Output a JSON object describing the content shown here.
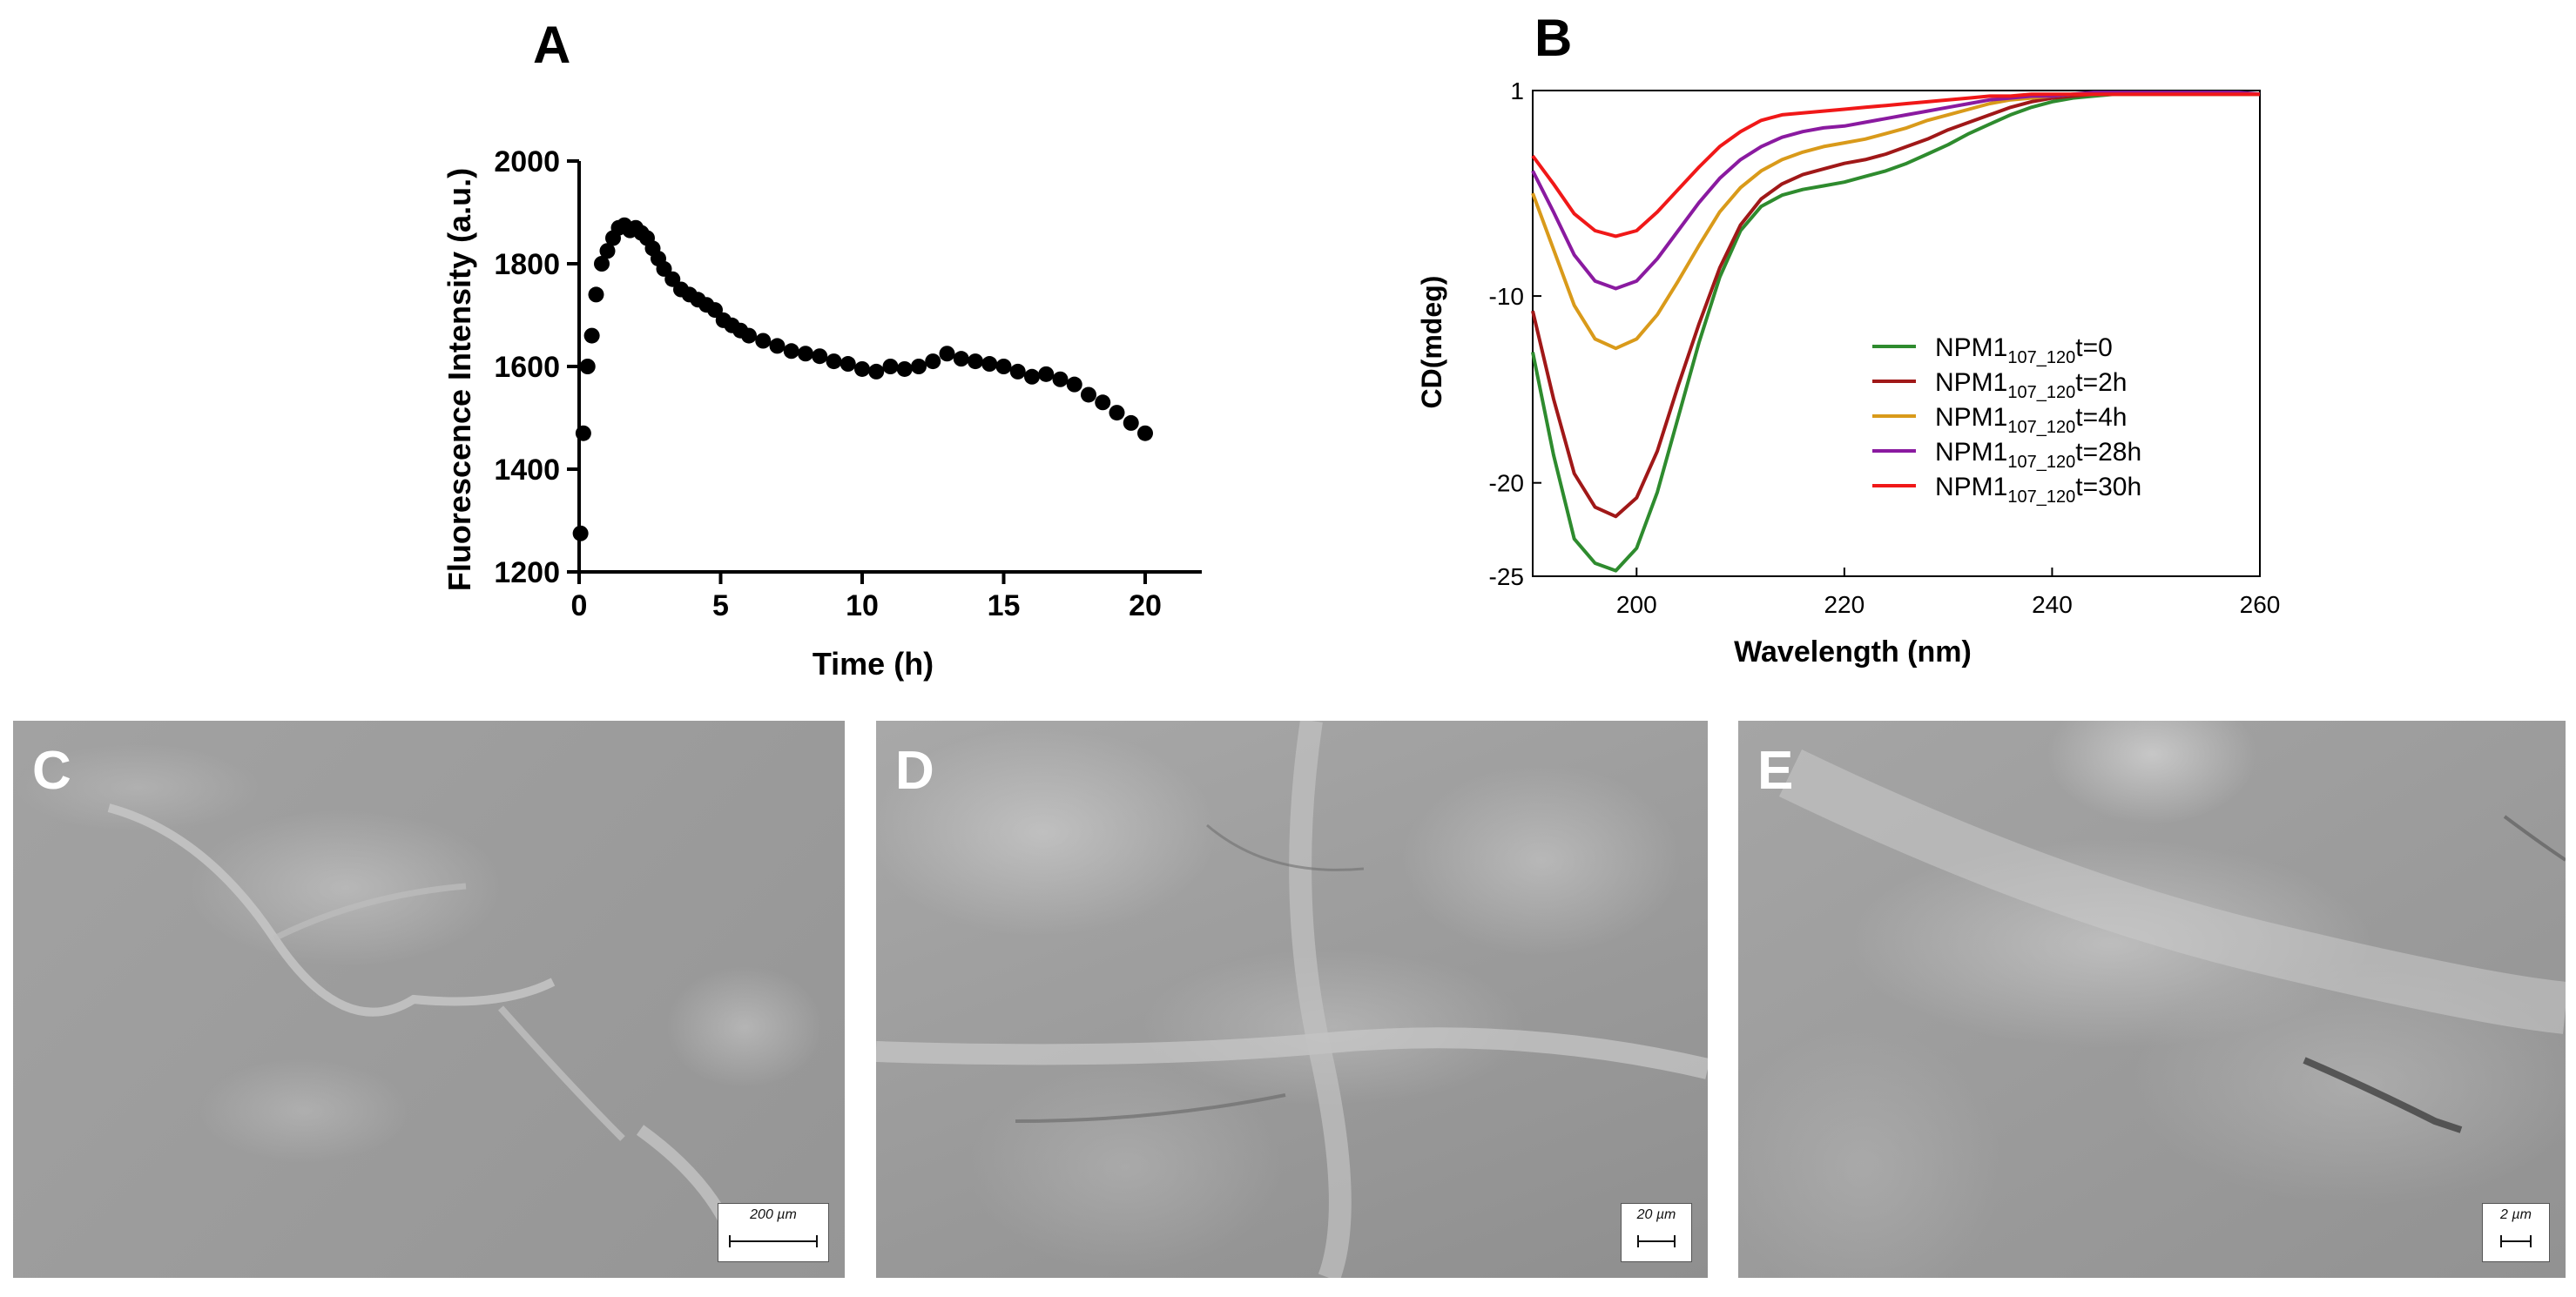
{
  "chart_data": [
    {
      "panel": "A",
      "type": "scatter",
      "title": "",
      "xlabel": "Time (h)",
      "ylabel": "Fluorescence Intensity (a.u.)",
      "xlim": [
        0,
        22
      ],
      "ylim": [
        1200,
        2000
      ],
      "xticks": [
        "0",
        "5",
        "10",
        "15",
        "20"
      ],
      "yticks": [
        "1200",
        "1400",
        "1600",
        "1800",
        "2000"
      ],
      "series": [
        {
          "name": "Fluorescence",
          "color": "#000000",
          "x": [
            0.05,
            0.15,
            0.3,
            0.45,
            0.6,
            0.8,
            1.0,
            1.2,
            1.4,
            1.6,
            1.8,
            2.0,
            2.2,
            2.4,
            2.6,
            2.8,
            3.0,
            3.3,
            3.6,
            3.9,
            4.2,
            4.5,
            4.8,
            5.1,
            5.4,
            5.7,
            6.0,
            6.5,
            7.0,
            7.5,
            8.0,
            8.5,
            9.0,
            9.5,
            10.0,
            10.5,
            11.0,
            11.5,
            12.0,
            12.5,
            13.0,
            13.5,
            14.0,
            14.5,
            15.0,
            15.5,
            16.0,
            16.5,
            17.0,
            17.5,
            18.0,
            18.5,
            19.0,
            19.5,
            20.0
          ],
          "y": [
            1275,
            1470,
            1600,
            1660,
            1740,
            1800,
            1825,
            1850,
            1870,
            1875,
            1865,
            1870,
            1860,
            1850,
            1830,
            1810,
            1790,
            1770,
            1750,
            1740,
            1730,
            1720,
            1710,
            1690,
            1680,
            1670,
            1660,
            1650,
            1640,
            1630,
            1625,
            1620,
            1610,
            1605,
            1595,
            1590,
            1600,
            1595,
            1600,
            1610,
            1625,
            1615,
            1610,
            1605,
            1600,
            1590,
            1580,
            1585,
            1575,
            1565,
            1545,
            1530,
            1510,
            1490,
            1470
          ]
        }
      ]
    },
    {
      "panel": "B",
      "type": "line",
      "title": "",
      "xlabel": "Wavelength (nm)",
      "ylabel": "CD(mdeg)",
      "xlim": [
        190,
        260
      ],
      "ylim": [
        -25,
        1
      ],
      "xticks": [
        "200",
        "220",
        "240",
        "260"
      ],
      "yticks": [
        "1",
        "-10",
        "-20",
        "-25"
      ],
      "legend_position": "center-right",
      "x": [
        190,
        192,
        194,
        196,
        198,
        200,
        202,
        204,
        206,
        208,
        210,
        212,
        214,
        216,
        218,
        220,
        222,
        224,
        226,
        228,
        230,
        232,
        234,
        236,
        238,
        240,
        242,
        244,
        246,
        248,
        250,
        252,
        254,
        256,
        258,
        260
      ],
      "series": [
        {
          "name": "NPM1",
          "sub": "107_120",
          "suffix": "t=0",
          "color": "#2e8b2e",
          "values": [
            -13,
            -18.5,
            -23,
            -24.3,
            -24.7,
            -23.5,
            -20.5,
            -16.5,
            -12.5,
            -9,
            -6.5,
            -5.2,
            -4.6,
            -4.3,
            -4.1,
            -3.9,
            -3.6,
            -3.3,
            -2.9,
            -2.4,
            -1.9,
            -1.3,
            -0.8,
            -0.3,
            0.1,
            0.4,
            0.6,
            0.7,
            0.8,
            0.8,
            0.8,
            0.8,
            0.8,
            0.8,
            0.8,
            0.8
          ]
        },
        {
          "name": "NPM1",
          "sub": "107_120",
          "suffix": "t=2h",
          "color": "#a01818",
          "values": [
            -10.8,
            -15.5,
            -19.5,
            -21.3,
            -21.8,
            -20.8,
            -18.3,
            -14.8,
            -11.5,
            -8.5,
            -6.2,
            -4.8,
            -4,
            -3.5,
            -3.2,
            -2.9,
            -2.7,
            -2.4,
            -2,
            -1.6,
            -1.1,
            -0.7,
            -0.3,
            0.1,
            0.4,
            0.6,
            0.7,
            0.8,
            0.8,
            0.8,
            0.8,
            0.8,
            0.8,
            0.8,
            0.8,
            0.8
          ]
        },
        {
          "name": "NPM1",
          "sub": "107_120",
          "suffix": "t=4h",
          "color": "#d99a1a",
          "values": [
            -4.5,
            -7.5,
            -10.5,
            -12.3,
            -12.8,
            -12.3,
            -11,
            -9.2,
            -7.3,
            -5.5,
            -4.2,
            -3.3,
            -2.7,
            -2.3,
            -2,
            -1.8,
            -1.6,
            -1.3,
            -1,
            -0.6,
            -0.3,
            0,
            0.3,
            0.5,
            0.6,
            0.7,
            0.8,
            0.8,
            0.8,
            0.8,
            0.8,
            0.8,
            0.8,
            0.8,
            0.8,
            0.8
          ]
        },
        {
          "name": "NPM1",
          "sub": "107_120",
          "suffix": "t=28h",
          "color": "#8a1aa0",
          "values": [
            -3.3,
            -5.5,
            -7.8,
            -9.2,
            -9.6,
            -9.2,
            -8,
            -6.5,
            -5,
            -3.7,
            -2.7,
            -2,
            -1.5,
            -1.2,
            -1,
            -0.9,
            -0.7,
            -0.5,
            -0.3,
            -0.1,
            0.1,
            0.3,
            0.5,
            0.6,
            0.7,
            0.7,
            0.8,
            0.9,
            0.9,
            0.9,
            0.9,
            0.9,
            0.9,
            0.9,
            0.9,
            0.8
          ]
        },
        {
          "name": "NPM1",
          "sub": "107_120",
          "suffix": "t=30h",
          "color": "#f01818",
          "values": [
            -2.5,
            -4,
            -5.6,
            -6.5,
            -6.8,
            -6.5,
            -5.5,
            -4.3,
            -3.1,
            -2,
            -1.2,
            -0.6,
            -0.3,
            -0.2,
            -0.1,
            0,
            0.1,
            0.2,
            0.3,
            0.4,
            0.5,
            0.6,
            0.7,
            0.7,
            0.8,
            0.8,
            0.8,
            0.8,
            0.8,
            0.8,
            0.8,
            0.8,
            0.8,
            0.8,
            0.8,
            0.8
          ]
        }
      ]
    }
  ],
  "panels": {
    "a_label": "A",
    "b_label": "B",
    "c_label": "C",
    "d_label": "D",
    "e_label": "E"
  },
  "micrographs": [
    {
      "label": "C",
      "scale": "200 µm"
    },
    {
      "label": "D",
      "scale": "20 µm"
    },
    {
      "label": "E",
      "scale": "2 µm"
    }
  ]
}
